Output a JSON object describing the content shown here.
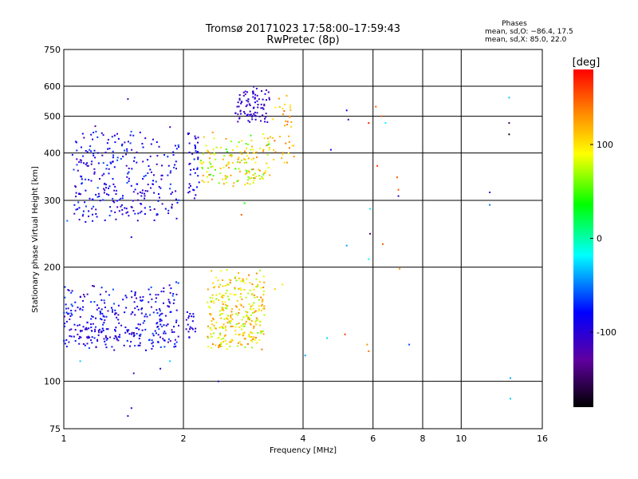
{
  "chart_data": {
    "type": "scatter",
    "title": "Tromsø 20171023 17:58:00–17:59:43",
    "subtitle": "RwPretec (8p)",
    "xlabel": "Frequency [MHz]",
    "ylabel": "Stationary phase Virtual Height [km]",
    "x_scale": "log",
    "y_scale": "log",
    "xlim": [
      1,
      16
    ],
    "ylim": [
      75,
      750
    ],
    "x_ticks": [
      1,
      2,
      4,
      6,
      8,
      10,
      16
    ],
    "x_gridlines": [
      2,
      4,
      6,
      8,
      10
    ],
    "y_ticks": [
      75,
      100,
      200,
      300,
      400,
      500,
      600,
      750
    ],
    "y_gridlines": [
      100,
      200,
      300,
      400,
      500,
      600
    ],
    "grid": true,
    "stats": {
      "heading": "Phases",
      "line1": "mean, sd,O: −86.4, 17.5",
      "line2": "mean, sd,X:  85.0, 22.0"
    },
    "colorbar": {
      "label": "[deg]",
      "range": [
        -180,
        180
      ],
      "ticks": [
        100,
        0,
        -100
      ],
      "colors": [
        "#ff0000",
        "#ff8000",
        "#ffff00",
        "#00ff00",
        "#00ffff",
        "#0000ff",
        "#6000a0",
        "#000000"
      ]
    },
    "clusters": [
      {
        "f": [
          1.0,
          1.95
        ],
        "h": [
          120,
          185
        ],
        "phase": [
          -120,
          -60
        ],
        "n": 340
      },
      {
        "f": [
          2.0,
          2.15
        ],
        "h": [
          128,
          160
        ],
        "phase": [
          -120,
          -80
        ],
        "n": 20
      },
      {
        "f": [
          2.3,
          3.2
        ],
        "h": [
          120,
          200
        ],
        "phase": [
          60,
          140
        ],
        "n": 300
      },
      {
        "f": [
          1.05,
          1.95
        ],
        "h": [
          260,
          480
        ],
        "phase": [
          -120,
          -60
        ],
        "n": 300
      },
      {
        "f": [
          2.05,
          2.2
        ],
        "h": [
          300,
          480
        ],
        "phase": [
          -110,
          -70
        ],
        "n": 40
      },
      {
        "f": [
          2.2,
          3.3
        ],
        "h": [
          320,
          460
        ],
        "phase": [
          40,
          140
        ],
        "n": 160
      },
      {
        "f": [
          2.7,
          3.3
        ],
        "h": [
          480,
          600
        ],
        "phase": [
          -120,
          -90
        ],
        "n": 90
      },
      {
        "f": [
          3.3,
          3.8
        ],
        "h": [
          360,
          620
        ],
        "phase": [
          90,
          150
        ],
        "n": 40
      }
    ],
    "scatter_points": [
      {
        "x": 1.45,
        "y": 555,
        "phase": -120
      },
      {
        "x": 1.45,
        "y": 81,
        "phase": -100
      },
      {
        "x": 1.48,
        "y": 85,
        "phase": -100
      },
      {
        "x": 1.5,
        "y": 105,
        "phase": -120
      },
      {
        "x": 1.48,
        "y": 240,
        "phase": -100
      },
      {
        "x": 1.75,
        "y": 108,
        "phase": -100
      },
      {
        "x": 1.85,
        "y": 113,
        "phase": -30
      },
      {
        "x": 2.45,
        "y": 100,
        "phase": -110
      },
      {
        "x": 4.05,
        "y": 117,
        "phase": -40
      },
      {
        "x": 4.7,
        "y": 408,
        "phase": -100
      },
      {
        "x": 4.6,
        "y": 130,
        "phase": -30
      },
      {
        "x": 5.15,
        "y": 518,
        "phase": -90
      },
      {
        "x": 5.2,
        "y": 490,
        "phase": -110
      },
      {
        "x": 5.15,
        "y": 228,
        "phase": -40
      },
      {
        "x": 5.1,
        "y": 133,
        "phase": 160
      },
      {
        "x": 5.85,
        "y": 480,
        "phase": 170
      },
      {
        "x": 5.9,
        "y": 285,
        "phase": -20
      },
      {
        "x": 5.9,
        "y": 245,
        "phase": -150
      },
      {
        "x": 5.85,
        "y": 210,
        "phase": -20
      },
      {
        "x": 5.85,
        "y": 120,
        "phase": 140
      },
      {
        "x": 5.8,
        "y": 125,
        "phase": 130
      },
      {
        "x": 6.1,
        "y": 530,
        "phase": 150
      },
      {
        "x": 6.15,
        "y": 370,
        "phase": 160
      },
      {
        "x": 6.3,
        "y": 500,
        "phase": 150
      },
      {
        "x": 6.35,
        "y": 230,
        "phase": 150
      },
      {
        "x": 6.45,
        "y": 480,
        "phase": -20
      },
      {
        "x": 6.9,
        "y": 345,
        "phase": 150
      },
      {
        "x": 6.95,
        "y": 320,
        "phase": 150
      },
      {
        "x": 6.95,
        "y": 308,
        "phase": -110
      },
      {
        "x": 7.0,
        "y": 198,
        "phase": 130
      },
      {
        "x": 7.4,
        "y": 125,
        "phase": -60
      },
      {
        "x": 11.8,
        "y": 315,
        "phase": -110
      },
      {
        "x": 11.8,
        "y": 292,
        "phase": -50
      },
      {
        "x": 13.2,
        "y": 560,
        "phase": -30
      },
      {
        "x": 13.2,
        "y": 480,
        "phase": -150
      },
      {
        "x": 13.2,
        "y": 448,
        "phase": -170
      },
      {
        "x": 13.3,
        "y": 102,
        "phase": -40
      },
      {
        "x": 13.3,
        "y": 90,
        "phase": -30
      },
      {
        "x": 1.1,
        "y": 113,
        "phase": -30
      },
      {
        "x": 1.02,
        "y": 265,
        "phase": -50
      },
      {
        "x": 2.85,
        "y": 295,
        "phase": 40
      },
      {
        "x": 2.8,
        "y": 275,
        "phase": 150
      },
      {
        "x": 3.55,
        "y": 180,
        "phase": 100
      },
      {
        "x": 3.4,
        "y": 175,
        "phase": 110
      }
    ]
  }
}
